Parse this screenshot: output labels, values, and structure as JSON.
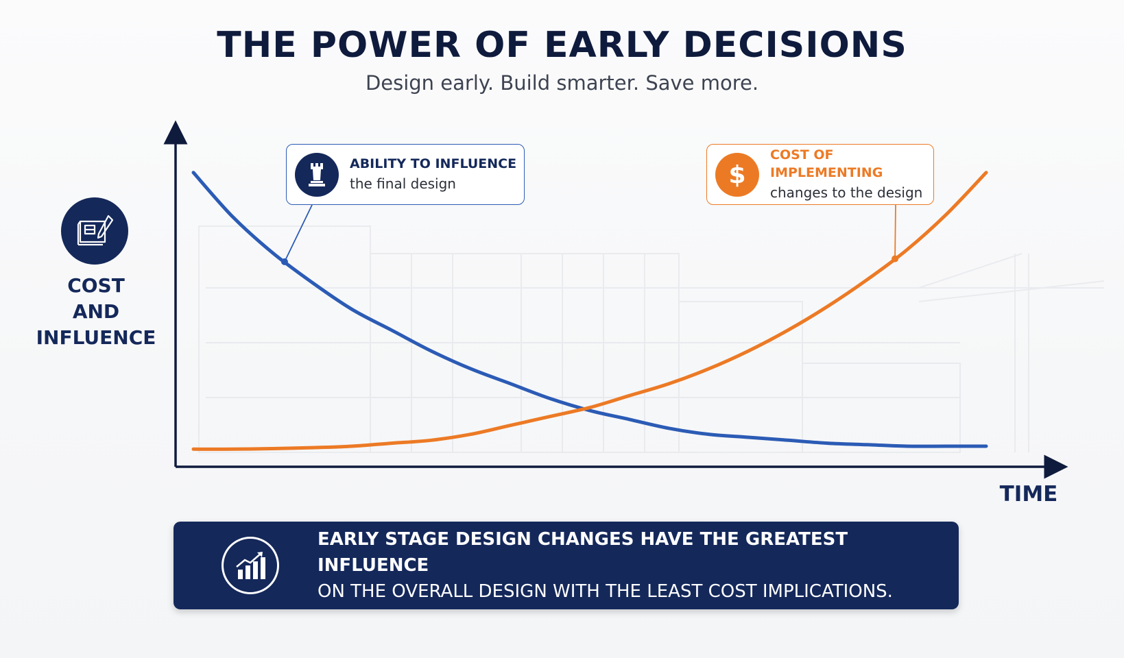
{
  "title": "THE POWER OF EARLY DECISIONS",
  "subtitle": "Design early. Build smarter. Save more.",
  "y_axis_label": [
    "COST",
    "AND",
    "INFLUENCE"
  ],
  "x_axis_label": "TIME",
  "icons": {
    "y_axis": "blueprint-pencil-icon",
    "ability_callout": "chess-rook-icon",
    "cost_callout": "dollar-icon",
    "banner": "growth-chart-icon"
  },
  "callouts": {
    "ability": {
      "heading": "ABILITY TO INFLUENCE",
      "sub": "the final design"
    },
    "cost": {
      "heading": "COST OF IMPLEMENTING",
      "sub": "changes to the design"
    }
  },
  "banner": {
    "line1": "EARLY STAGE DESIGN CHANGES HAVE THE GREATEST INFLUENCE",
    "line2": "ON THE OVERALL DESIGN WITH THE LEAST COST IMPLICATIONS."
  },
  "colors": {
    "navy": "#14285a",
    "blue_series": "#2b5bb5",
    "orange_series": "#ec7a25"
  },
  "chart_data": {
    "type": "line",
    "xlabel": "TIME",
    "ylabel": "COST AND INFLUENCE",
    "xlim": [
      0,
      1
    ],
    "ylim": [
      0,
      1
    ],
    "grid": false,
    "axis_tick_labels": false,
    "series": [
      {
        "name": "ABILITY TO INFLUENCE the final design",
        "color": "#2b5bb5",
        "x": [
          0.0,
          0.05,
          0.1,
          0.15,
          0.2,
          0.25,
          0.3,
          0.35,
          0.4,
          0.45,
          0.5,
          0.55,
          0.6,
          0.65,
          0.7,
          0.75,
          0.8,
          0.85,
          0.9,
          0.95,
          1.0
        ],
        "y": [
          0.95,
          0.8,
          0.68,
          0.58,
          0.49,
          0.42,
          0.35,
          0.29,
          0.24,
          0.19,
          0.15,
          0.12,
          0.09,
          0.07,
          0.06,
          0.05,
          0.04,
          0.035,
          0.03,
          0.03,
          0.03
        ]
      },
      {
        "name": "COST OF IMPLEMENTING changes to the design",
        "color": "#ec7a25",
        "x": [
          0.0,
          0.05,
          0.1,
          0.15,
          0.2,
          0.25,
          0.3,
          0.35,
          0.4,
          0.45,
          0.5,
          0.55,
          0.6,
          0.65,
          0.7,
          0.75,
          0.8,
          0.85,
          0.9,
          0.95,
          1.0
        ],
        "y": [
          0.02,
          0.02,
          0.022,
          0.025,
          0.03,
          0.04,
          0.05,
          0.07,
          0.1,
          0.13,
          0.16,
          0.2,
          0.24,
          0.29,
          0.35,
          0.42,
          0.5,
          0.59,
          0.69,
          0.81,
          0.95
        ]
      }
    ],
    "annotations": [
      {
        "text": "ABILITY TO INFLUENCE the final design",
        "series": 0,
        "at_x": 0.115
      },
      {
        "text": "COST OF IMPLEMENTING changes to the design",
        "series": 1,
        "at_x": 0.885
      }
    ]
  }
}
